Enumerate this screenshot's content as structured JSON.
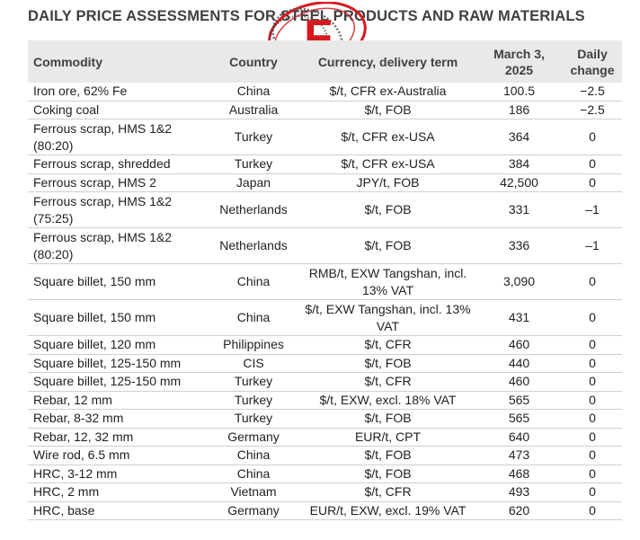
{
  "title": "DAILY PRICE ASSESSMENTS FOR STEEL PRODUCTS AND RAW MATERIALS",
  "logo": {
    "letter": "F",
    "color": "#d71920"
  },
  "table": {
    "headers": {
      "commodity": "Commodity",
      "country": "Country",
      "currency": "Currency, delivery term",
      "date": "March 3, 2025",
      "change": "Daily change"
    },
    "rows": [
      {
        "commodity": "Iron ore, 62% Fe",
        "country": "China",
        "term": "$/t, CFR ex-Australia",
        "price": "100.5",
        "change": "−2.5"
      },
      {
        "commodity": "Coking coal",
        "country": "Australia",
        "term": "$/t, FOB",
        "price": "186",
        "change": "−2.5"
      },
      {
        "commodity": "Ferrous scrap, HMS 1&2 (80:20)",
        "country": "Turkey",
        "term": "$/t, CFR ex-USA",
        "price": "364",
        "change": "0"
      },
      {
        "commodity": "Ferrous scrap, shredded",
        "country": "Turkey",
        "term": "$/t, CFR ex-USA",
        "price": "384",
        "change": "0"
      },
      {
        "commodity": "Ferrous scrap, HMS 2",
        "country": "Japan",
        "term": "JPY/t, FOB",
        "price": "42,500",
        "change": "0"
      },
      {
        "commodity": "Ferrous scrap, HMS 1&2 (75:25)",
        "country": "Netherlands",
        "term": "$/t, FOB",
        "price": "331",
        "change": "–1"
      },
      {
        "commodity": "Ferrous scrap, HMS 1&2 (80:20)",
        "country": "Netherlands",
        "term": "$/t, FOB",
        "price": "336",
        "change": "–1"
      },
      {
        "commodity": "Square billet, 150 mm",
        "country": "China",
        "term": "RMB/t, EXW Tangshan, incl. 13% VAT",
        "price": "3,090",
        "change": "0"
      },
      {
        "commodity": "Square billet, 150 mm",
        "country": "China",
        "term": "$/t, EXW Tangshan, incl. 13% VAT",
        "price": "431",
        "change": "0"
      },
      {
        "commodity": "Square billet, 120 mm",
        "country": "Philippines",
        "term": "$/t, CFR",
        "price": "460",
        "change": "0"
      },
      {
        "commodity": "Square billet, 125-150 mm",
        "country": "CIS",
        "term": "$/t, FOB",
        "price": "440",
        "change": "0"
      },
      {
        "commodity": "Square billet, 125-150 mm",
        "country": "Turkey",
        "term": "$/t, CFR",
        "price": "460",
        "change": "0"
      },
      {
        "commodity": "Rebar, 12 mm",
        "country": "Turkey",
        "term": "$/t, EXW, excl. 18% VAT",
        "price": "565",
        "change": "0"
      },
      {
        "commodity": "Rebar, 8-32 mm",
        "country": "Turkey",
        "term": "$/t, FOB",
        "price": "565",
        "change": "0"
      },
      {
        "commodity": "Rebar, 12, 32 mm",
        "country": "Germany",
        "term": "EUR/t, CPT",
        "price": "640",
        "change": "0"
      },
      {
        "commodity": "Wire rod, 6.5 mm",
        "country": "China",
        "term": "$/t, FOB",
        "price": "473",
        "change": "0"
      },
      {
        "commodity": "HRC, 3-12 mm",
        "country": "China",
        "term": "$/t, FOB",
        "price": "468",
        "change": "0"
      },
      {
        "commodity": "HRC, 2 mm",
        "country": "Vietnam",
        "term": "$/t, CFR",
        "price": "493",
        "change": "0"
      },
      {
        "commodity": "HRC, base",
        "country": "Germany",
        "term": "EUR/t, EXW, excl. 19% VAT",
        "price": "620",
        "change": "0"
      }
    ]
  }
}
